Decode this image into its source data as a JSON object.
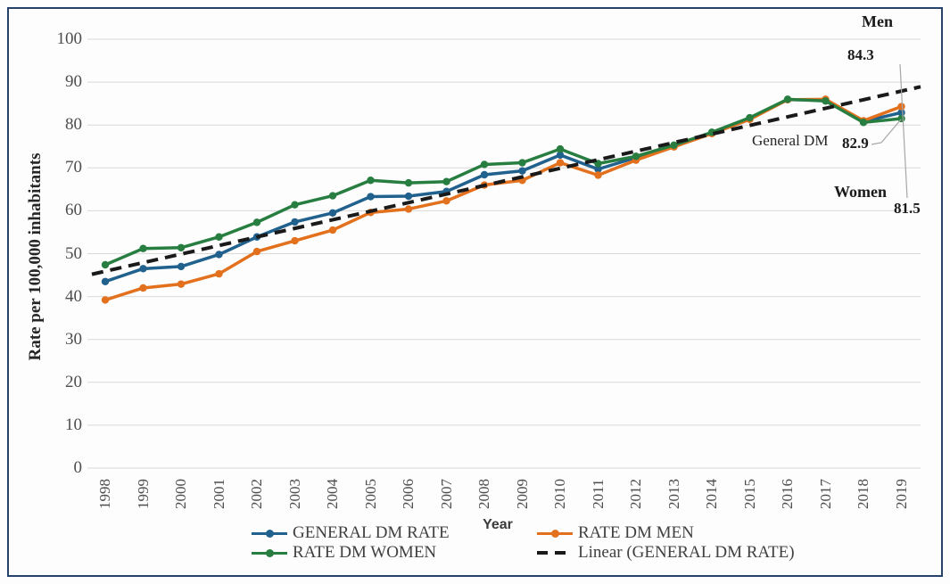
{
  "figure": {
    "border_color": "#25426B",
    "background": "#FDFDFD"
  },
  "chart_data": {
    "type": "line",
    "title": "",
    "xlabel": "Year",
    "ylabel": "Rate per 100,000 inhabitants",
    "ylim": [
      0,
      100
    ],
    "yticks": [
      0,
      10,
      20,
      30,
      40,
      50,
      60,
      70,
      80,
      90,
      100
    ],
    "grid": true,
    "gridline_color": "#D9D9D9",
    "tick_color": "#4D4D4D",
    "legend_position": "bottom",
    "x_years": [
      "1998",
      "1999",
      "2000",
      "2001",
      "2002",
      "2003",
      "2004",
      "2005",
      "2006",
      "2007",
      "2008",
      "2009",
      "2010",
      "2011",
      "2012",
      "2013",
      "2014",
      "2015",
      "2016",
      "2017",
      "2018",
      "2019"
    ],
    "series": [
      {
        "name": "GENERAL DM RATE",
        "color": "#20618D",
        "values": [
          43.5,
          46.5,
          47.0,
          49.8,
          53.9,
          57.4,
          59.5,
          63.3,
          63.4,
          64.5,
          68.4,
          69.3,
          73.0,
          69.7,
          72.4,
          75.1,
          78.2,
          81.5,
          85.9,
          85.8,
          80.8,
          82.9
        ]
      },
      {
        "name": "RATE DM MEN",
        "color": "#E2701D",
        "values": [
          39.2,
          42.0,
          42.9,
          45.3,
          50.5,
          53.0,
          55.5,
          59.6,
          60.4,
          62.3,
          66.0,
          67.1,
          71.2,
          68.3,
          71.8,
          74.9,
          78.0,
          81.3,
          85.9,
          86.0,
          81.0,
          84.3
        ]
      },
      {
        "name": "RATE DM WOMEN",
        "color": "#287E41",
        "values": [
          47.4,
          51.2,
          51.4,
          53.9,
          57.3,
          61.4,
          63.5,
          67.1,
          66.5,
          66.8,
          70.8,
          71.2,
          74.4,
          71.0,
          72.7,
          75.3,
          78.3,
          81.7,
          86.0,
          85.6,
          80.6,
          81.5
        ]
      }
    ],
    "trendline": {
      "name": "Linear (GENERAL DM RATE)",
      "color": "#1A1A1A",
      "style": "dashed",
      "value_1998": 45.9,
      "value_2019": 87.9
    },
    "annotations": {
      "men_label": "Men",
      "men_value": "84.3",
      "general_label": "General DM",
      "general_value": "82.9",
      "women_label": "Women",
      "women_value": "81.5"
    }
  },
  "legend": {
    "items": [
      {
        "label": "GENERAL DM RATE"
      },
      {
        "label": "RATE DM MEN"
      },
      {
        "label": "RATE DM WOMEN"
      },
      {
        "label": "Linear (GENERAL DM RATE)"
      }
    ]
  }
}
